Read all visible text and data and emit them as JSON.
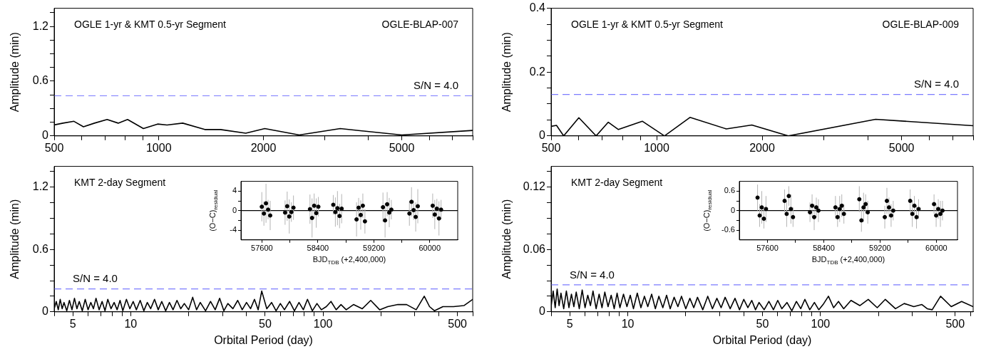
{
  "chart_data": [
    {
      "type": "line",
      "ylabel": "Amplitude (min)",
      "annotations": [
        "OGLE 1-yr & KMT 0.5-yr Segment",
        "OGLE-BLAP-007",
        {
          "text": "S/N = 4.0",
          "y": 0.44
        }
      ],
      "log": "x",
      "marker": "none",
      "line_style": "solid",
      "xlim": [
        500,
        8000
      ],
      "xticks": [
        500,
        {
          "value": 600,
          "label": null
        },
        {
          "value": 700,
          "label": null
        },
        {
          "value": 800,
          "label": null
        },
        {
          "value": 900,
          "label": null
        },
        1000,
        2000,
        {
          "value": 3000,
          "label": null
        },
        {
          "value": 4000,
          "label": null
        },
        5000,
        {
          "value": 6000,
          "label": null
        },
        {
          "value": 7000,
          "label": null
        },
        {
          "value": 8000,
          "label": null
        }
      ],
      "ylim": [
        0,
        1.4
      ],
      "yticks": [
        0,
        {
          "value": 0.15,
          "label": null
        },
        {
          "value": 0.3,
          "label": null
        },
        {
          "value": 0.45,
          "label": null
        },
        0.6,
        {
          "value": 0.75,
          "label": null
        },
        {
          "value": 0.9,
          "label": null
        },
        {
          "value": 1.05,
          "label": null
        },
        1.2,
        {
          "value": 1.35,
          "label": null
        }
      ],
      "ref_lines": [
        {
          "axis": "y",
          "value": 0.44,
          "color": "#7b7bff",
          "line_style": "dashed"
        }
      ],
      "series": [
        {
          "color": "#000000",
          "x": [
            500,
            530,
            570,
            607,
            653,
            710,
            764,
            813,
            903,
            992,
            1056,
            1172,
            1356,
            1505,
            1779,
            2018,
            2536,
            3327,
            5000,
            8000
          ],
          "values": [
            0.12,
            0.14,
            0.16,
            0.1,
            0.14,
            0.18,
            0.14,
            0.18,
            0.08,
            0.13,
            0.12,
            0.14,
            0.07,
            0.07,
            0.03,
            0.08,
            0.01,
            0.08,
            0.01,
            0.06
          ]
        }
      ]
    },
    {
      "type": "line",
      "ylabel": "Amplitude (min)",
      "annotations": [
        "OGLE 1-yr & KMT 0.5-yr Segment",
        "OGLE-BLAP-009",
        {
          "text": "S/N = 4.0",
          "y": 0.13
        }
      ],
      "log": "x",
      "marker": "none",
      "line_style": "solid",
      "xlim": [
        500,
        8000
      ],
      "xticks": [
        500,
        {
          "value": 600,
          "label": null
        },
        {
          "value": 700,
          "label": null
        },
        {
          "value": 800,
          "label": null
        },
        {
          "value": 900,
          "label": null
        },
        1000,
        2000,
        {
          "value": 3000,
          "label": null
        },
        {
          "value": 4000,
          "label": null
        },
        5000,
        {
          "value": 6000,
          "label": null
        },
        {
          "value": 7000,
          "label": null
        },
        {
          "value": 8000,
          "label": null
        }
      ],
      "ylim": [
        0,
        0.4
      ],
      "yticks": [
        0,
        {
          "value": 0.05,
          "label": null
        },
        {
          "value": 0.1,
          "label": null
        },
        {
          "value": 0.15,
          "label": null
        },
        0.2,
        {
          "value": 0.25,
          "label": null
        },
        {
          "value": 0.3,
          "label": null
        },
        {
          "value": 0.35,
          "label": null
        },
        0.4
      ],
      "ref_lines": [
        {
          "axis": "y",
          "value": 0.13,
          "color": "#7b7bff",
          "line_style": "dashed"
        }
      ],
      "series": [
        {
          "color": "#000000",
          "x": [
            500,
            518,
            543,
            600,
            672,
            728,
            778,
            910,
            1053,
            1245,
            1580,
            1869,
            2375,
            4215,
            8000
          ],
          "values": [
            0.03,
            0.033,
            0,
            0.057,
            0,
            0.043,
            0.02,
            0.046,
            0,
            0.058,
            0.022,
            0.034,
            0,
            0.052,
            0.032
          ]
        }
      ]
    },
    {
      "type": "line",
      "ylabel": "Amplitude (min)",
      "xlabel": "Orbital Period (day)",
      "annotations": [
        "KMT 2-day Segment",
        {
          "text": "S/N = 4.0",
          "y": 0.22
        }
      ],
      "log": "x",
      "marker": "none",
      "line_style": "solid",
      "xlim": [
        4,
        600
      ],
      "xticks": [
        {
          "value": 4,
          "label": null
        },
        5,
        {
          "value": 6,
          "label": null
        },
        {
          "value": 7,
          "label": null
        },
        {
          "value": 8,
          "label": null
        },
        {
          "value": 9,
          "label": null
        },
        10,
        {
          "value": 20,
          "label": null
        },
        {
          "value": 30,
          "label": null
        },
        {
          "value": 40,
          "label": null
        },
        50,
        {
          "value": 60,
          "label": null
        },
        {
          "value": 70,
          "label": null
        },
        {
          "value": 80,
          "label": null
        },
        {
          "value": 90,
          "label": null
        },
        100,
        {
          "value": 200,
          "label": null
        },
        {
          "value": 300,
          "label": null
        },
        {
          "value": 400,
          "label": null
        },
        500,
        {
          "value": 600,
          "label": null
        }
      ],
      "ylim": [
        0,
        1.4
      ],
      "yticks": [
        0,
        {
          "value": 0.15,
          "label": null
        },
        {
          "value": 0.3,
          "label": null
        },
        {
          "value": 0.45,
          "label": null
        },
        0.6,
        {
          "value": 0.75,
          "label": null
        },
        {
          "value": 0.9,
          "label": null
        },
        {
          "value": 1.05,
          "label": null
        },
        1.2,
        {
          "value": 1.35,
          "label": null
        }
      ],
      "ref_lines": [
        {
          "axis": "y",
          "value": 0.22,
          "color": "#7b7bff",
          "line_style": "dashed"
        }
      ],
      "series": [
        {
          "color": "#000000",
          "x": [
            4.0,
            4.1,
            4.2,
            4.3,
            4.4,
            4.5,
            4.65,
            4.8,
            4.95,
            5.1,
            5.25,
            5.4,
            5.6,
            5.8,
            6.0,
            6.2,
            6.4,
            6.6,
            6.85,
            7.1,
            7.35,
            7.6,
            7.9,
            8.2,
            8.5,
            8.8,
            9.1,
            9.5,
            9.9,
            10.3,
            10.7,
            11.2,
            11.7,
            12.2,
            12.7,
            13.3,
            13.9,
            14.5,
            15.2,
            15.9,
            16.6,
            17.4,
            18.2,
            19,
            20,
            21,
            22,
            23,
            24.5,
            26,
            27.5,
            29,
            30.5,
            32,
            34,
            36,
            38,
            40,
            42,
            44,
            46,
            48,
            51,
            54,
            57,
            60,
            63,
            67,
            71,
            75,
            79,
            83,
            88,
            93,
            98,
            104,
            110,
            117,
            124,
            132,
            144,
            160,
            177,
            197,
            217,
            245,
            272,
            305,
            336,
            358,
            380,
            420,
            477,
            540,
            600
          ],
          "values": [
            0.03,
            0.1,
            0.02,
            0.12,
            0.03,
            0.09,
            0.01,
            0.11,
            0.02,
            0.13,
            0.03,
            0.1,
            0.01,
            0.12,
            0.02,
            0.09,
            0.03,
            0.13,
            0.02,
            0.1,
            0.01,
            0.12,
            0.03,
            0.09,
            0.02,
            0.11,
            0.01,
            0.12,
            0.03,
            0.1,
            0.02,
            0.11,
            0.01,
            0.09,
            0.03,
            0.12,
            0.02,
            0.1,
            0.01,
            0.09,
            0.02,
            0.11,
            0.03,
            0.08,
            0.02,
            0.14,
            0.02,
            0.09,
            0.01,
            0.1,
            0.02,
            0.13,
            0.01,
            0.08,
            0.03,
            0.11,
            0.02,
            0.09,
            0.03,
            0.12,
            0.02,
            0.2,
            0.03,
            0.09,
            0.01,
            0.08,
            0.02,
            0.1,
            0.01,
            0.09,
            0.02,
            0.12,
            0.01,
            0.08,
            0.02,
            0.05,
            0.1,
            0.02,
            0.07,
            0.02,
            0.07,
            0.03,
            0.11,
            0.02,
            0.05,
            0.07,
            0.07,
            0.02,
            0.15,
            0.05,
            0.01,
            0.05,
            0.05,
            0.06,
            0.12
          ]
        }
      ]
    },
    {
      "type": "scatter",
      "ylabel": "(O−C)$_{residual}$",
      "xlabel": "BJD$_{TDB}$ (+2,400,000)",
      "marker": "circle",
      "xlim": [
        57300,
        60400
      ],
      "xticks": [
        57600,
        {
          "value": 58000,
          "label": null
        },
        58400,
        {
          "value": 58800,
          "label": null
        },
        59200,
        {
          "value": 59600,
          "label": null
        },
        60000
      ],
      "ylim": [
        -6,
        6
      ],
      "yticks": [
        -4,
        {
          "value": -2,
          "label": null
        },
        0,
        {
          "value": 2,
          "label": null
        },
        4
      ],
      "ref_lines": [
        {
          "axis": "y",
          "value": 0,
          "color": "#000000",
          "line_style": "solid"
        }
      ],
      "series": [
        {
          "color": "#000000",
          "x": [
            57598,
            57628,
            57658,
            57688,
            57718,
            57931,
            57961,
            57991,
            58021,
            58051,
            58287,
            58317,
            58347,
            58377,
            58407,
            58620,
            58650,
            58680,
            58710,
            58740,
            58953,
            58983,
            59013,
            59043,
            59073,
            59331,
            59361,
            59391,
            59421,
            59451,
            59709,
            59739,
            59769,
            59799,
            59829,
            60042,
            60072,
            60102,
            60132,
            60162
          ],
          "values": [
            0.8,
            -0.6,
            1.5,
            0.2,
            -1.0,
            -0.4,
            0.9,
            -1.2,
            -0.3,
            0.6,
            0.3,
            -1.5,
            1.0,
            -0.5,
            0.8,
            1.2,
            -0.3,
            0.5,
            -1.1,
            0.4,
            -1.8,
            0.6,
            -0.9,
            1.0,
            -2.2,
            0.7,
            -2.0,
            1.3,
            -0.4,
            0.2,
            -0.6,
            1.8,
            0.1,
            -1.3,
            0.9,
            1.0,
            -0.8,
            0.4,
            -1.6,
            0.2
          ],
          "errors": [
            3,
            2.5,
            4,
            2,
            3,
            2.5,
            3,
            3.5,
            2,
            2.5,
            3,
            4,
            2.5,
            3,
            2,
            2,
            3,
            3.5,
            2.5,
            3,
            3.5,
            2,
            3,
            2.5,
            2.5,
            3,
            3.5,
            2.5,
            3,
            2,
            2.5,
            3,
            2,
            3,
            3.5,
            2.5,
            3,
            2,
            3.5,
            2
          ]
        }
      ]
    },
    {
      "type": "line",
      "ylabel": "Amplitude (min)",
      "xlabel": "Orbital Period (day)",
      "annotations": [
        "KMT 2-day Segment",
        {
          "text": "S/N = 4.0",
          "y": 0.026
        }
      ],
      "log": "x",
      "marker": "none",
      "line_style": "solid",
      "xlim": [
        4,
        620
      ],
      "xticks": [
        {
          "value": 4,
          "label": null
        },
        5,
        {
          "value": 6,
          "label": null
        },
        {
          "value": 7,
          "label": null
        },
        {
          "value": 8,
          "label": null
        },
        {
          "value": 9,
          "label": null
        },
        10,
        {
          "value": 20,
          "label": null
        },
        {
          "value": 30,
          "label": null
        },
        {
          "value": 40,
          "label": null
        },
        50,
        {
          "value": 60,
          "label": null
        },
        {
          "value": 70,
          "label": null
        },
        {
          "value": 80,
          "label": null
        },
        {
          "value": 90,
          "label": null
        },
        100,
        {
          "value": 200,
          "label": null
        },
        {
          "value": 300,
          "label": null
        },
        {
          "value": 400,
          "label": null
        },
        500,
        {
          "value": 600,
          "label": null
        }
      ],
      "ylim": [
        0,
        0.14
      ],
      "yticks": [
        0,
        {
          "value": 0.015,
          "label": null
        },
        {
          "value": 0.03,
          "label": null
        },
        {
          "value": 0.045,
          "label": null
        },
        0.06,
        {
          "value": 0.075,
          "label": null
        },
        {
          "value": 0.09,
          "label": null
        },
        {
          "value": 0.105,
          "label": null
        },
        0.12,
        {
          "value": 0.135,
          "label": null
        }
      ],
      "ref_lines": [
        {
          "axis": "y",
          "value": 0.026,
          "color": "#7b7bff",
          "line_style": "dashed"
        }
      ],
      "series": [
        {
          "color": "#000000",
          "x": [
            4.0,
            4.1,
            4.2,
            4.3,
            4.4,
            4.5,
            4.65,
            4.8,
            4.95,
            5.1,
            5.25,
            5.4,
            5.6,
            5.8,
            6.0,
            6.2,
            6.4,
            6.6,
            6.85,
            7.1,
            7.35,
            7.6,
            7.9,
            8.2,
            8.5,
            8.8,
            9.1,
            9.5,
            9.9,
            10.3,
            10.7,
            11.2,
            11.7,
            12.2,
            12.7,
            13.3,
            13.9,
            14.5,
            15.2,
            15.9,
            16.6,
            17.4,
            18.2,
            19,
            20,
            21,
            22,
            23,
            24.5,
            26,
            27.5,
            29,
            30.5,
            32,
            34,
            36,
            38,
            40,
            42,
            44,
            46,
            48,
            51,
            54,
            57,
            60,
            63,
            67,
            71,
            75,
            79,
            83,
            88,
            93,
            98,
            104,
            110,
            117,
            124,
            132,
            144,
            160,
            177,
            197,
            217,
            245,
            272,
            305,
            336,
            358,
            380,
            420,
            477,
            540,
            620
          ],
          "values": [
            0.005,
            0.02,
            0.004,
            0.022,
            0.006,
            0.018,
            0.003,
            0.02,
            0.004,
            0.017,
            0.005,
            0.019,
            0.003,
            0.021,
            0.004,
            0.016,
            0.006,
            0.02,
            0.003,
            0.017,
            0.004,
            0.019,
            0.005,
            0.016,
            0.003,
            0.018,
            0.004,
            0.017,
            0.005,
            0.016,
            0.003,
            0.018,
            0.004,
            0.015,
            0.005,
            0.017,
            0.003,
            0.015,
            0.004,
            0.016,
            0.003,
            0.014,
            0.005,
            0.015,
            0.003,
            0.013,
            0.004,
            0.014,
            0.002,
            0.015,
            0.003,
            0.013,
            0.004,
            0.014,
            0.003,
            0.013,
            0.002,
            0.012,
            0.004,
            0.011,
            0.002,
            0.009,
            0.002,
            0.01,
            0.002,
            0.011,
            0.003,
            0.009,
            0.001,
            0.01,
            0.003,
            0.012,
            0.002,
            0.009,
            0.002,
            0.008,
            0.015,
            0.004,
            0.01,
            0.003,
            0.011,
            0.006,
            0.012,
            0.004,
            0.012,
            0.003,
            0.008,
            0.005,
            0.007,
            0.003,
            0.002,
            0.015,
            0.005,
            0.01,
            0.005
          ]
        }
      ]
    },
    {
      "type": "scatter",
      "ylabel": "(O−C)$_{residual}$",
      "xlabel": "BJD$_{TDB}$ (+2,400,000)",
      "marker": "circle",
      "xlim": [
        57200,
        60300
      ],
      "xticks": [
        57600,
        {
          "value": 58000,
          "label": null
        },
        58400,
        {
          "value": 58800,
          "label": null
        },
        59200,
        {
          "value": 59600,
          "label": null
        },
        60000
      ],
      "ylim": [
        -0.9,
        0.9
      ],
      "yticks": [
        -0.6,
        {
          "value": -0.3,
          "label": null
        },
        0,
        {
          "value": 0.3,
          "label": null
        },
        0.6
      ],
      "ref_lines": [
        {
          "axis": "y",
          "value": 0,
          "color": "#000000",
          "line_style": "solid"
        }
      ],
      "series": [
        {
          "color": "#000000",
          "x": [
            57459,
            57489,
            57519,
            57549,
            57579,
            57843,
            57873,
            57903,
            57933,
            57963,
            58204,
            58234,
            58264,
            58294,
            58324,
            58566,
            58596,
            58626,
            58656,
            58686,
            58905,
            58935,
            58965,
            58995,
            59025,
            59267,
            59297,
            59327,
            59357,
            59387,
            59628,
            59658,
            59688,
            59718,
            59748,
            59967,
            59997,
            60027,
            60057,
            60087
          ],
          "values": [
            0.4,
            -0.15,
            0.1,
            -0.25,
            0.05,
            0.3,
            -0.1,
            0.45,
            0.05,
            -0.2,
            -0.05,
            0.15,
            -0.2,
            0.1,
            0.0,
            0.1,
            -0.2,
            0.05,
            0.15,
            -0.1,
            0.35,
            -0.3,
            0.1,
            0.2,
            -0.05,
            -0.2,
            0.3,
            0.1,
            -0.15,
            0.0,
            0.3,
            -0.1,
            0.15,
            -0.2,
            0.05,
            0.2,
            -0.15,
            0.05,
            -0.1,
            0.0
          ],
          "errors": [
            0.4,
            0.35,
            0.5,
            0.3,
            0.4,
            0.35,
            0.4,
            0.3,
            0.45,
            0.3,
            0.3,
            0.35,
            0.4,
            0.3,
            0.35,
            0.35,
            0.3,
            0.4,
            0.35,
            0.3,
            0.4,
            0.35,
            0.45,
            0.3,
            0.35,
            0.35,
            0.4,
            0.3,
            0.35,
            0.3,
            0.35,
            0.4,
            0.3,
            0.35,
            0.3,
            0.3,
            0.35,
            0.3,
            0.4,
            0.3
          ]
        }
      ]
    }
  ]
}
